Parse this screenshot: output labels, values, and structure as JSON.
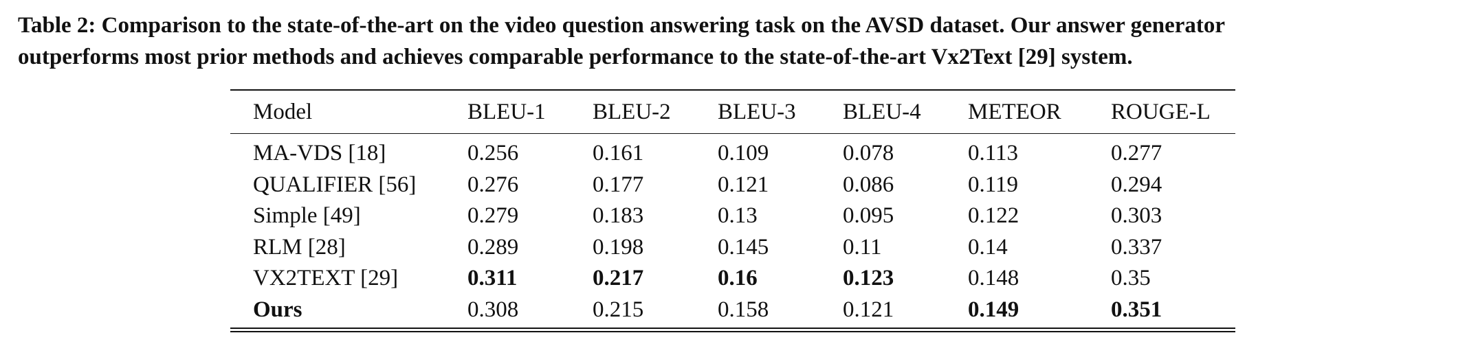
{
  "caption": {
    "line1": "Table 2: Comparison to the state-of-the-art on the video question answering task on the AVSD dataset. Our answer generator",
    "line2": "outperforms most prior methods and achieves comparable performance to the state-of-the-art Vx2Text [29] system."
  },
  "table": {
    "columns": [
      "Model",
      "BLEU-1",
      "BLEU-2",
      "BLEU-3",
      "BLEU-4",
      "METEOR",
      "ROUGE-L"
    ],
    "rows": [
      {
        "cells": [
          "MA-VDS [18]",
          "0.256",
          "0.161",
          "0.109",
          "0.078",
          "0.113",
          "0.277"
        ],
        "bold": [
          false,
          false,
          false,
          false,
          false,
          false,
          false
        ]
      },
      {
        "cells": [
          "QUALIFIER [56]",
          "0.276",
          "0.177",
          "0.121",
          "0.086",
          "0.119",
          "0.294"
        ],
        "bold": [
          false,
          false,
          false,
          false,
          false,
          false,
          false
        ]
      },
      {
        "cells": [
          "Simple [49]",
          "0.279",
          "0.183",
          "0.13",
          "0.095",
          "0.122",
          "0.303"
        ],
        "bold": [
          false,
          false,
          false,
          false,
          false,
          false,
          false
        ]
      },
      {
        "cells": [
          "RLM [28]",
          "0.289",
          "0.198",
          "0.145",
          "0.11",
          "0.14",
          "0.337"
        ],
        "bold": [
          false,
          false,
          false,
          false,
          false,
          false,
          false
        ]
      },
      {
        "cells": [
          "VX2TEXT [29]",
          "0.311",
          "0.217",
          "0.16",
          "0.123",
          "0.148",
          "0.35"
        ],
        "bold": [
          false,
          true,
          true,
          true,
          true,
          false,
          false
        ]
      },
      {
        "cells": [
          "Ours",
          "0.308",
          "0.215",
          "0.158",
          "0.121",
          "0.149",
          "0.351"
        ],
        "bold": [
          true,
          false,
          false,
          false,
          false,
          true,
          true
        ]
      }
    ]
  }
}
